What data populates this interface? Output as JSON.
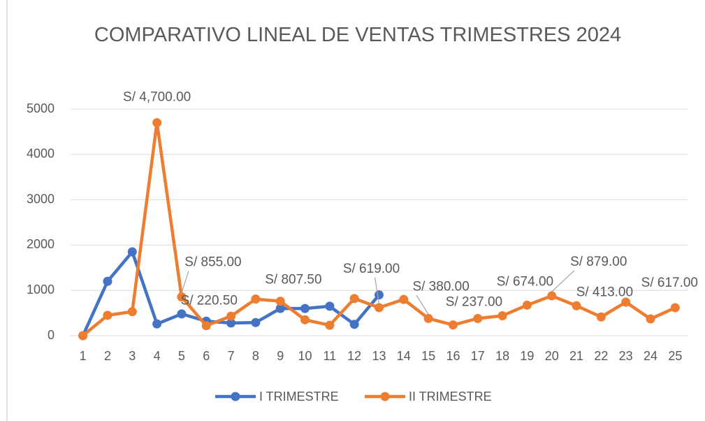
{
  "chart_data": {
    "type": "line",
    "title": "COMPARATIVO LINEAL DE VENTAS TRIMESTRES 2024",
    "categories": [
      "1",
      "2",
      "3",
      "4",
      "5",
      "6",
      "7",
      "8",
      "9",
      "10",
      "11",
      "12",
      "13",
      "14",
      "15",
      "16",
      "17",
      "18",
      "19",
      "20",
      "21",
      "22",
      "23",
      "24",
      "25"
    ],
    "series": [
      {
        "name": "I TRIMESTRE",
        "color": "#4472c4",
        "values": [
          0,
          1200,
          1850,
          260,
          480,
          320,
          280,
          290,
          600,
          600,
          650,
          250,
          900,
          null,
          null,
          null,
          null,
          null,
          null,
          null,
          null,
          null,
          null,
          null,
          null
        ]
      },
      {
        "name": "II TRIMESTRE",
        "color": "#ed7d31",
        "values": [
          0,
          450,
          530,
          4700,
          855,
          220.5,
          430,
          807.5,
          760,
          350,
          230,
          820,
          619,
          800,
          380,
          237,
          380,
          440,
          674,
          879,
          660,
          413,
          740,
          370,
          617
        ],
        "value_labels": [
          null,
          null,
          null,
          "S/ 4,700.00",
          "S/ 855.00",
          "S/ 220.50",
          null,
          "S/ 807.50",
          null,
          null,
          null,
          null,
          "S/ 619.00",
          null,
          "S/ 380.00",
          "S/ 237.00",
          null,
          null,
          "S/ 674.00",
          "S/ 879.00",
          null,
          "S/ 413.00",
          null,
          null,
          "S/ 617.00"
        ]
      }
    ],
    "ylim": [
      0,
      5000
    ],
    "yticks": [
      0,
      1000,
      2000,
      3000,
      4000,
      5000
    ],
    "grid": true,
    "legend": "bottom"
  }
}
